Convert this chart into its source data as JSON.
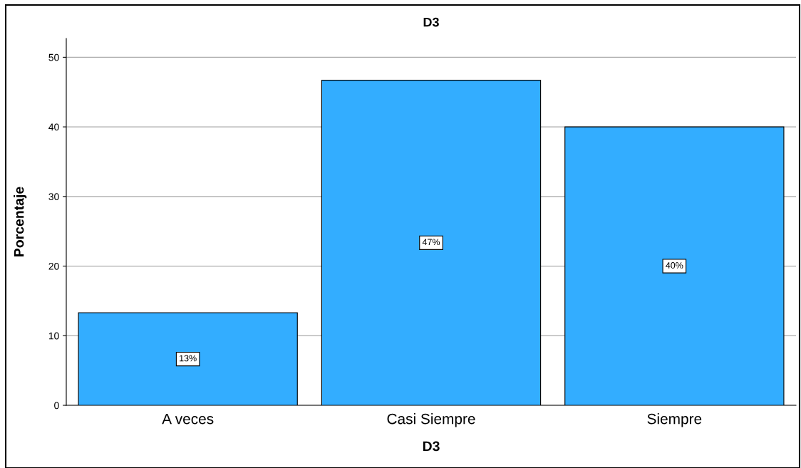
{
  "chart_data": {
    "type": "bar",
    "title": "D3",
    "xlabel": "D3",
    "ylabel": "Porcentaje",
    "categories": [
      "A veces",
      "Casi Siempre",
      "Siempre"
    ],
    "values": [
      13.3,
      46.7,
      40.0
    ],
    "value_labels": [
      "13%",
      "47%",
      "40%"
    ],
    "color": "#33adff",
    "ylim": [
      0,
      52.7
    ],
    "yticks": [
      0,
      10,
      20,
      30,
      40,
      50
    ],
    "grid": "y",
    "legend": false
  }
}
